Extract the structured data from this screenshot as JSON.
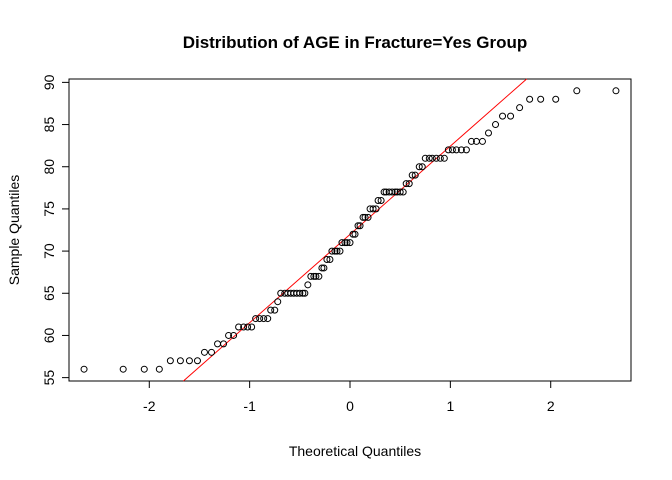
{
  "chart_data": {
    "type": "scatter",
    "title": "Distribution of AGE in Fracture=Yes Group",
    "xlabel": "Theoretical Quantiles",
    "ylabel": "Sample Quantiles",
    "xlim": [
      -2.8,
      2.8
    ],
    "ylim": [
      54.6,
      90.4
    ],
    "x_ticks": [
      -2,
      -1,
      0,
      1,
      2
    ],
    "y_ticks": [
      55,
      60,
      65,
      70,
      75,
      80,
      85,
      90
    ],
    "grid": false,
    "point_color": "#000000",
    "line_color": "#ff0000",
    "reference_line": {
      "x1": -1.66,
      "y1": 54.6,
      "x2": 1.76,
      "y2": 90.4
    },
    "points": [
      [
        -2.65,
        56
      ],
      [
        -2.26,
        56
      ],
      [
        -2.05,
        56
      ],
      [
        -1.9,
        56
      ],
      [
        -1.79,
        57
      ],
      [
        -1.69,
        57
      ],
      [
        -1.6,
        57
      ],
      [
        -1.52,
        57
      ],
      [
        -1.45,
        58
      ],
      [
        -1.38,
        58
      ],
      [
        -1.32,
        59
      ],
      [
        -1.26,
        59
      ],
      [
        -1.21,
        60
      ],
      [
        -1.16,
        60
      ],
      [
        -1.11,
        61
      ],
      [
        -1.06,
        61
      ],
      [
        -1.02,
        61
      ],
      [
        -0.98,
        61
      ],
      [
        -0.94,
        62
      ],
      [
        -0.9,
        62
      ],
      [
        -0.86,
        62
      ],
      [
        -0.82,
        62
      ],
      [
        -0.79,
        63
      ],
      [
        -0.75,
        63
      ],
      [
        -0.72,
        64
      ],
      [
        -0.69,
        65
      ],
      [
        -0.65,
        65
      ],
      [
        -0.62,
        65
      ],
      [
        -0.59,
        65
      ],
      [
        -0.56,
        65
      ],
      [
        -0.53,
        65
      ],
      [
        -0.5,
        65
      ],
      [
        -0.47,
        65
      ],
      [
        -0.45,
        65
      ],
      [
        -0.42,
        66
      ],
      [
        -0.39,
        67
      ],
      [
        -0.36,
        67
      ],
      [
        -0.34,
        67
      ],
      [
        -0.31,
        67
      ],
      [
        -0.28,
        68
      ],
      [
        -0.26,
        68
      ],
      [
        -0.23,
        69
      ],
      [
        -0.2,
        69
      ],
      [
        -0.18,
        70
      ],
      [
        -0.15,
        70
      ],
      [
        -0.13,
        70
      ],
      [
        -0.1,
        70
      ],
      [
        -0.08,
        71
      ],
      [
        -0.05,
        71
      ],
      [
        -0.03,
        71
      ],
      [
        0.0,
        71
      ],
      [
        0.03,
        72
      ],
      [
        0.05,
        72
      ],
      [
        0.08,
        73
      ],
      [
        0.1,
        73
      ],
      [
        0.13,
        74
      ],
      [
        0.15,
        74
      ],
      [
        0.18,
        74
      ],
      [
        0.2,
        75
      ],
      [
        0.23,
        75
      ],
      [
        0.26,
        75
      ],
      [
        0.28,
        76
      ],
      [
        0.31,
        76
      ],
      [
        0.34,
        77
      ],
      [
        0.36,
        77
      ],
      [
        0.39,
        77
      ],
      [
        0.42,
        77
      ],
      [
        0.45,
        77
      ],
      [
        0.47,
        77
      ],
      [
        0.5,
        77
      ],
      [
        0.53,
        77
      ],
      [
        0.56,
        78
      ],
      [
        0.59,
        78
      ],
      [
        0.62,
        79
      ],
      [
        0.65,
        79
      ],
      [
        0.69,
        80
      ],
      [
        0.72,
        80
      ],
      [
        0.75,
        81
      ],
      [
        0.79,
        81
      ],
      [
        0.82,
        81
      ],
      [
        0.86,
        81
      ],
      [
        0.9,
        81
      ],
      [
        0.94,
        81
      ],
      [
        0.98,
        82
      ],
      [
        1.02,
        82
      ],
      [
        1.06,
        82
      ],
      [
        1.11,
        82
      ],
      [
        1.16,
        82
      ],
      [
        1.21,
        83
      ],
      [
        1.26,
        83
      ],
      [
        1.32,
        83
      ],
      [
        1.38,
        84
      ],
      [
        1.45,
        85
      ],
      [
        1.52,
        86
      ],
      [
        1.6,
        86
      ],
      [
        1.69,
        87
      ],
      [
        1.79,
        88
      ],
      [
        1.9,
        88
      ],
      [
        2.05,
        88
      ],
      [
        2.26,
        89
      ],
      [
        2.65,
        89
      ]
    ]
  }
}
